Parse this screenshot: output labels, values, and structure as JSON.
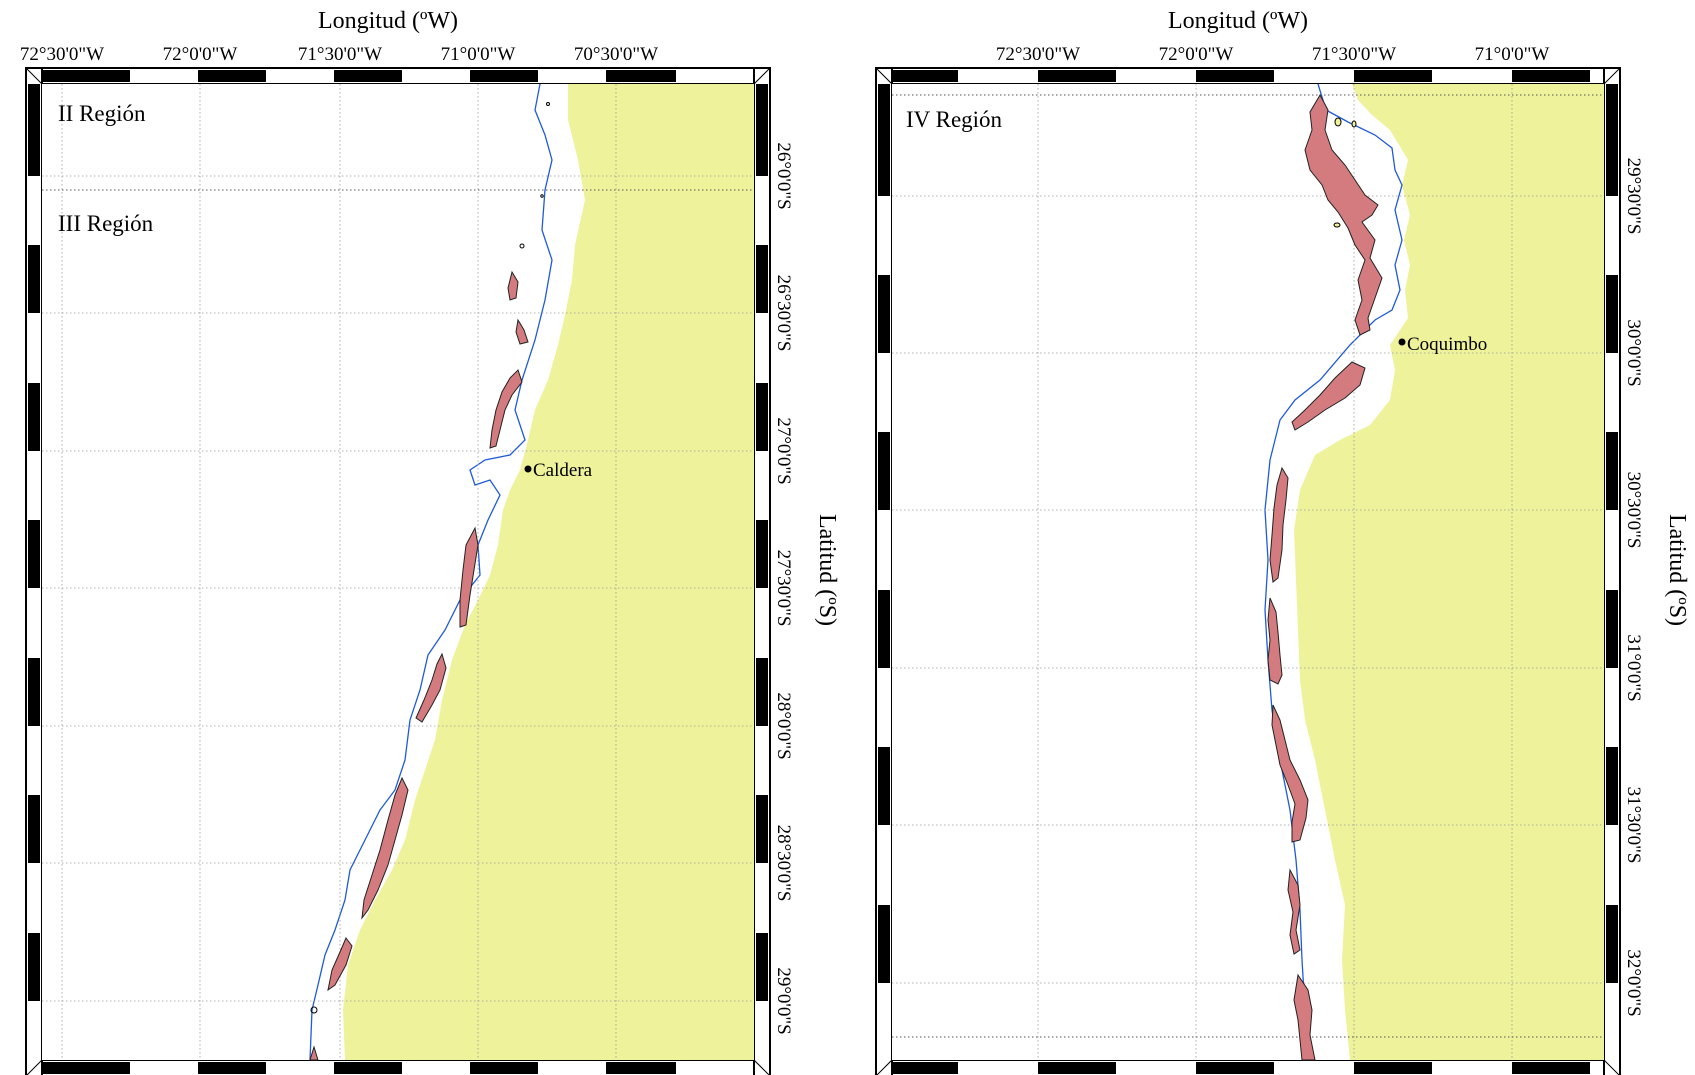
{
  "maps": [
    {
      "x_title": "Longitud (ºW)",
      "y_title": "Latitud (ºS)",
      "lon_ticks": [
        "72°30'0\"W",
        "72°0'0\"W",
        "71°30'0\"W",
        "71°0'0\"W",
        "70°30'0\"W"
      ],
      "lat_ticks": [
        "26°0'0\"S",
        "26°30'0\"S",
        "27°0'0\"S",
        "27°30'0\"S",
        "28°0'0\"S",
        "28°30'0\"S",
        "29°0'0\"S"
      ],
      "regions": [
        "II Región",
        "III Región"
      ],
      "places": [
        {
          "name": "Caldera"
        }
      ]
    },
    {
      "x_title": "Longitud (ºW)",
      "y_title": "Latitud (ºS)",
      "lon_ticks": [
        "72°30'0\"W",
        "72°0'0\"W",
        "71°30'0\"W",
        "71°0'0\"W"
      ],
      "lat_ticks": [
        "29°30'0\"S",
        "30°0'0\"S",
        "30°30'0\"S",
        "31°0'0\"S",
        "31°30'0\"S",
        "32°0'0\"S"
      ],
      "regions": [
        "IV Región"
      ],
      "places": [
        {
          "name": "Coquimbo"
        }
      ]
    }
  ],
  "colors": {
    "land": "#eef29b",
    "bathymetry_line": "#1f5bd6",
    "patches": "#d37b7e"
  }
}
